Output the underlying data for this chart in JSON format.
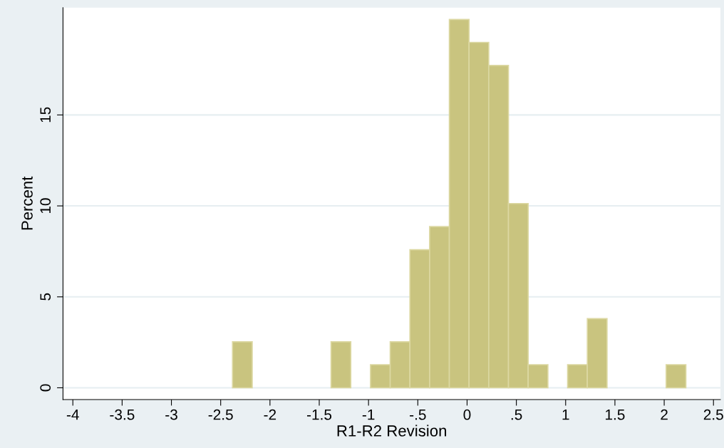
{
  "chart_data": {
    "type": "histogram",
    "xlabel": "R1-R2 Revision",
    "ylabel": "Percent",
    "bins": [
      -2.38,
      -2.18,
      -1.98,
      -1.78,
      -1.58,
      -1.38,
      -1.18,
      -0.98,
      -0.78,
      -0.58,
      -0.38,
      -0.18,
      0.02,
      0.22,
      0.42,
      0.62,
      0.82,
      1.02,
      1.22,
      1.42,
      1.62,
      1.82,
      2.02,
      2.22
    ],
    "values": [
      2.53,
      0,
      0,
      0,
      0,
      2.53,
      0,
      1.27,
      2.53,
      7.59,
      8.86,
      20.25,
      18.99,
      17.72,
      10.13,
      1.27,
      0,
      1.27,
      3.8,
      0,
      0,
      0,
      1.27
    ],
    "color": "#c9c47f",
    "xlim": [
      -4.1,
      2.57
    ],
    "ylim": [
      -0.65,
      20.9
    ],
    "xticks": [
      -4,
      -3.5,
      -3,
      -2.5,
      -2,
      -1.5,
      -1,
      {
        "value": -0.5,
        "label": "-.5"
      },
      0,
      {
        "value": 0.5,
        "label": ".5"
      },
      1,
      1.5,
      2,
      2.5
    ],
    "yticks": [
      0,
      5,
      10,
      15
    ],
    "grid": "y"
  }
}
